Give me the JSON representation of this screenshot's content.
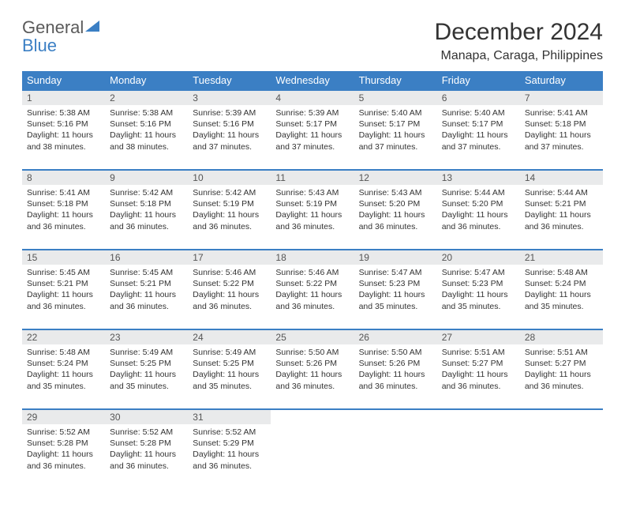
{
  "logo": {
    "part1": "General",
    "part2": "Blue"
  },
  "title": "December 2024",
  "location": "Manapa, Caraga, Philippines",
  "headers": [
    "Sunday",
    "Monday",
    "Tuesday",
    "Wednesday",
    "Thursday",
    "Friday",
    "Saturday"
  ],
  "colors": {
    "header_bg": "#3b7fc4",
    "daynum_bg": "#e9eaeb",
    "border": "#3b7fc4"
  },
  "weeks": [
    {
      "nums": [
        "1",
        "2",
        "3",
        "4",
        "5",
        "6",
        "7"
      ],
      "cells": [
        {
          "sunrise": "Sunrise: 5:38 AM",
          "sunset": "Sunset: 5:16 PM",
          "day1": "Daylight: 11 hours",
          "day2": "and 38 minutes."
        },
        {
          "sunrise": "Sunrise: 5:38 AM",
          "sunset": "Sunset: 5:16 PM",
          "day1": "Daylight: 11 hours",
          "day2": "and 38 minutes."
        },
        {
          "sunrise": "Sunrise: 5:39 AM",
          "sunset": "Sunset: 5:16 PM",
          "day1": "Daylight: 11 hours",
          "day2": "and 37 minutes."
        },
        {
          "sunrise": "Sunrise: 5:39 AM",
          "sunset": "Sunset: 5:17 PM",
          "day1": "Daylight: 11 hours",
          "day2": "and 37 minutes."
        },
        {
          "sunrise": "Sunrise: 5:40 AM",
          "sunset": "Sunset: 5:17 PM",
          "day1": "Daylight: 11 hours",
          "day2": "and 37 minutes."
        },
        {
          "sunrise": "Sunrise: 5:40 AM",
          "sunset": "Sunset: 5:17 PM",
          "day1": "Daylight: 11 hours",
          "day2": "and 37 minutes."
        },
        {
          "sunrise": "Sunrise: 5:41 AM",
          "sunset": "Sunset: 5:18 PM",
          "day1": "Daylight: 11 hours",
          "day2": "and 37 minutes."
        }
      ]
    },
    {
      "nums": [
        "8",
        "9",
        "10",
        "11",
        "12",
        "13",
        "14"
      ],
      "cells": [
        {
          "sunrise": "Sunrise: 5:41 AM",
          "sunset": "Sunset: 5:18 PM",
          "day1": "Daylight: 11 hours",
          "day2": "and 36 minutes."
        },
        {
          "sunrise": "Sunrise: 5:42 AM",
          "sunset": "Sunset: 5:18 PM",
          "day1": "Daylight: 11 hours",
          "day2": "and 36 minutes."
        },
        {
          "sunrise": "Sunrise: 5:42 AM",
          "sunset": "Sunset: 5:19 PM",
          "day1": "Daylight: 11 hours",
          "day2": "and 36 minutes."
        },
        {
          "sunrise": "Sunrise: 5:43 AM",
          "sunset": "Sunset: 5:19 PM",
          "day1": "Daylight: 11 hours",
          "day2": "and 36 minutes."
        },
        {
          "sunrise": "Sunrise: 5:43 AM",
          "sunset": "Sunset: 5:20 PM",
          "day1": "Daylight: 11 hours",
          "day2": "and 36 minutes."
        },
        {
          "sunrise": "Sunrise: 5:44 AM",
          "sunset": "Sunset: 5:20 PM",
          "day1": "Daylight: 11 hours",
          "day2": "and 36 minutes."
        },
        {
          "sunrise": "Sunrise: 5:44 AM",
          "sunset": "Sunset: 5:21 PM",
          "day1": "Daylight: 11 hours",
          "day2": "and 36 minutes."
        }
      ]
    },
    {
      "nums": [
        "15",
        "16",
        "17",
        "18",
        "19",
        "20",
        "21"
      ],
      "cells": [
        {
          "sunrise": "Sunrise: 5:45 AM",
          "sunset": "Sunset: 5:21 PM",
          "day1": "Daylight: 11 hours",
          "day2": "and 36 minutes."
        },
        {
          "sunrise": "Sunrise: 5:45 AM",
          "sunset": "Sunset: 5:21 PM",
          "day1": "Daylight: 11 hours",
          "day2": "and 36 minutes."
        },
        {
          "sunrise": "Sunrise: 5:46 AM",
          "sunset": "Sunset: 5:22 PM",
          "day1": "Daylight: 11 hours",
          "day2": "and 36 minutes."
        },
        {
          "sunrise": "Sunrise: 5:46 AM",
          "sunset": "Sunset: 5:22 PM",
          "day1": "Daylight: 11 hours",
          "day2": "and 36 minutes."
        },
        {
          "sunrise": "Sunrise: 5:47 AM",
          "sunset": "Sunset: 5:23 PM",
          "day1": "Daylight: 11 hours",
          "day2": "and 35 minutes."
        },
        {
          "sunrise": "Sunrise: 5:47 AM",
          "sunset": "Sunset: 5:23 PM",
          "day1": "Daylight: 11 hours",
          "day2": "and 35 minutes."
        },
        {
          "sunrise": "Sunrise: 5:48 AM",
          "sunset": "Sunset: 5:24 PM",
          "day1": "Daylight: 11 hours",
          "day2": "and 35 minutes."
        }
      ]
    },
    {
      "nums": [
        "22",
        "23",
        "24",
        "25",
        "26",
        "27",
        "28"
      ],
      "cells": [
        {
          "sunrise": "Sunrise: 5:48 AM",
          "sunset": "Sunset: 5:24 PM",
          "day1": "Daylight: 11 hours",
          "day2": "and 35 minutes."
        },
        {
          "sunrise": "Sunrise: 5:49 AM",
          "sunset": "Sunset: 5:25 PM",
          "day1": "Daylight: 11 hours",
          "day2": "and 35 minutes."
        },
        {
          "sunrise": "Sunrise: 5:49 AM",
          "sunset": "Sunset: 5:25 PM",
          "day1": "Daylight: 11 hours",
          "day2": "and 35 minutes."
        },
        {
          "sunrise": "Sunrise: 5:50 AM",
          "sunset": "Sunset: 5:26 PM",
          "day1": "Daylight: 11 hours",
          "day2": "and 36 minutes."
        },
        {
          "sunrise": "Sunrise: 5:50 AM",
          "sunset": "Sunset: 5:26 PM",
          "day1": "Daylight: 11 hours",
          "day2": "and 36 minutes."
        },
        {
          "sunrise": "Sunrise: 5:51 AM",
          "sunset": "Sunset: 5:27 PM",
          "day1": "Daylight: 11 hours",
          "day2": "and 36 minutes."
        },
        {
          "sunrise": "Sunrise: 5:51 AM",
          "sunset": "Sunset: 5:27 PM",
          "day1": "Daylight: 11 hours",
          "day2": "and 36 minutes."
        }
      ]
    },
    {
      "nums": [
        "29",
        "30",
        "31",
        "",
        "",
        "",
        ""
      ],
      "cells": [
        {
          "sunrise": "Sunrise: 5:52 AM",
          "sunset": "Sunset: 5:28 PM",
          "day1": "Daylight: 11 hours",
          "day2": "and 36 minutes."
        },
        {
          "sunrise": "Sunrise: 5:52 AM",
          "sunset": "Sunset: 5:28 PM",
          "day1": "Daylight: 11 hours",
          "day2": "and 36 minutes."
        },
        {
          "sunrise": "Sunrise: 5:52 AM",
          "sunset": "Sunset: 5:29 PM",
          "day1": "Daylight: 11 hours",
          "day2": "and 36 minutes."
        },
        null,
        null,
        null,
        null
      ]
    }
  ]
}
